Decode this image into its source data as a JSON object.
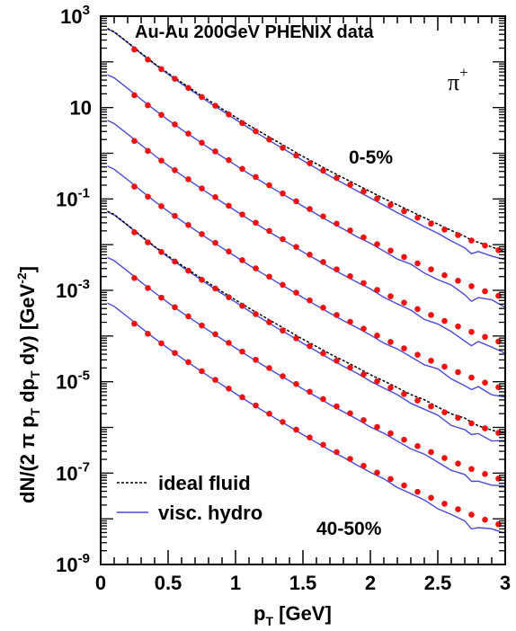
{
  "chart_data": {
    "type": "scatter",
    "title": "Au-Au 200GeV  PHENIX data",
    "particle_label": "π",
    "particle_charge": "+",
    "xlabel": "p",
    "xlabel_sub": "T",
    "xlabel_unit": " [GeV]",
    "ylabel": "dN/(2 π p_T dp_T dy) [GeV^-2]",
    "xlim": [
      0,
      3
    ],
    "ylim_log10": [
      -9,
      3
    ],
    "log_y": true,
    "x_ticks": [
      0,
      0.5,
      1,
      1.5,
      2,
      2.5,
      3
    ],
    "x_tick_labels": [
      "0",
      "0.5",
      "1",
      "1.5",
      "2",
      "2.5",
      "3"
    ],
    "y_tick_exponents": [
      3,
      1,
      -1,
      -3,
      -5,
      -7,
      -9
    ],
    "y_tick_labels": [
      "10",
      "10",
      "10",
      "10",
      "10",
      "10",
      "10"
    ],
    "y_tick_label_exponents": [
      "3",
      "",
      "-1",
      "-3",
      "-5",
      "-7",
      "-9"
    ],
    "y_tick_plain": [
      "",
      "10",
      "",
      "",
      "",
      "",
      ""
    ],
    "centrality_top": "0-5%",
    "centrality_bottom": "40-50%",
    "legend": {
      "position": "bottom-left",
      "items": [
        {
          "label": "ideal fluid",
          "style": "dotted",
          "color": "#000000"
        },
        {
          "label": "visc. hydro",
          "style": "solid",
          "color": "#4a4ad8"
        }
      ]
    },
    "colors": {
      "data": "#ee1111",
      "visc": "#4a4ad8",
      "ideal": "#000000"
    },
    "data_x": [
      0.25,
      0.35,
      0.45,
      0.55,
      0.65,
      0.75,
      0.85,
      0.95,
      1.05,
      1.15,
      1.25,
      1.35,
      1.45,
      1.55,
      1.65,
      1.75,
      1.85,
      1.95,
      2.05,
      2.15,
      2.25,
      2.35,
      2.45,
      2.55,
      2.65,
      2.75,
      2.85,
      2.95
    ],
    "series": [
      {
        "scale": 1.0,
        "ideal": true,
        "log10_y": [
          2.27,
          2.05,
          1.84,
          1.63,
          1.43,
          1.23,
          1.04,
          0.85,
          0.66,
          0.48,
          0.3,
          0.12,
          -0.05,
          -0.22,
          -0.38,
          -0.54,
          -0.69,
          -0.84,
          -0.99,
          -1.13,
          -1.27,
          -1.41,
          -1.54,
          -1.67,
          -1.79,
          -1.91,
          -2.02,
          -2.12
        ]
      },
      {
        "scale": 0.1,
        "ideal": false,
        "log10_y": [
          1.27,
          1.05,
          0.84,
          0.63,
          0.43,
          0.23,
          0.04,
          -0.15,
          -0.34,
          -0.52,
          -0.7,
          -0.88,
          -1.05,
          -1.22,
          -1.38,
          -1.54,
          -1.69,
          -1.84,
          -1.99,
          -2.13,
          -2.27,
          -2.41,
          -2.54,
          -2.67,
          -2.79,
          -2.91,
          -3.02,
          -3.12
        ]
      },
      {
        "scale": 0.01,
        "ideal": false,
        "log10_y": [
          0.27,
          0.05,
          -0.16,
          -0.37,
          -0.57,
          -0.77,
          -0.96,
          -1.15,
          -1.34,
          -1.52,
          -1.7,
          -1.88,
          -2.05,
          -2.22,
          -2.38,
          -2.54,
          -2.69,
          -2.84,
          -2.99,
          -3.13,
          -3.27,
          -3.41,
          -3.54,
          -3.67,
          -3.79,
          -3.91,
          -4.02,
          -4.12
        ]
      },
      {
        "scale": 0.001,
        "ideal": false,
        "log10_y": [
          -0.73,
          -0.95,
          -1.16,
          -1.37,
          -1.57,
          -1.77,
          -1.96,
          -2.15,
          -2.34,
          -2.52,
          -2.7,
          -2.88,
          -3.05,
          -3.22,
          -3.38,
          -3.54,
          -3.69,
          -3.84,
          -3.99,
          -4.13,
          -4.27,
          -4.41,
          -4.54,
          -4.67,
          -4.79,
          -4.91,
          -5.02,
          -5.12
        ]
      },
      {
        "scale": 0.0001,
        "ideal": true,
        "log10_y": [
          -1.73,
          -1.95,
          -2.16,
          -2.37,
          -2.57,
          -2.77,
          -2.96,
          -3.15,
          -3.34,
          -3.52,
          -3.7,
          -3.88,
          -4.05,
          -4.22,
          -4.38,
          -4.54,
          -4.69,
          -4.84,
          -4.99,
          -5.13,
          -5.27,
          -5.41,
          -5.54,
          -5.67,
          -5.79,
          -5.91,
          -6.02,
          -6.12
        ]
      },
      {
        "scale": 1e-05,
        "ideal": false,
        "log10_y": [
          -2.73,
          -2.95,
          -3.16,
          -3.37,
          -3.57,
          -3.77,
          -3.96,
          -4.15,
          -4.34,
          -4.52,
          -4.7,
          -4.88,
          -5.05,
          -5.22,
          -5.38,
          -5.54,
          -5.69,
          -5.84,
          -5.99,
          -6.13,
          -6.27,
          -6.41,
          -6.54,
          -6.67,
          -6.79,
          -6.91,
          -7.02,
          -7.12
        ]
      },
      {
        "scale": 1e-06,
        "ideal": false,
        "log10_y": [
          -3.73,
          -3.95,
          -4.16,
          -4.37,
          -4.57,
          -4.77,
          -4.96,
          -5.15,
          -5.34,
          -5.52,
          -5.7,
          -5.88,
          -6.05,
          -6.22,
          -6.38,
          -6.54,
          -6.69,
          -6.84,
          -6.99,
          -7.13,
          -7.27,
          -7.41,
          -7.54,
          -7.67,
          -7.79,
          -7.91,
          -8.02,
          -8.12
        ]
      }
    ],
    "curve_x": [
      0.05,
      0.1,
      0.2,
      0.3,
      0.4,
      0.5,
      0.6,
      0.7,
      0.8,
      0.9,
      1.0,
      1.1,
      1.2,
      1.3,
      1.4,
      1.5,
      1.6,
      1.7,
      1.8,
      1.9,
      2.0,
      2.1,
      2.2,
      2.3,
      2.4,
      2.5,
      2.6,
      2.7,
      2.75,
      2.8,
      2.9,
      3.0
    ],
    "visc_log10_y_top": [
      2.72,
      2.65,
      2.42,
      2.18,
      1.95,
      1.73,
      1.52,
      1.32,
      1.12,
      0.93,
      0.74,
      0.55,
      0.37,
      0.19,
      0.02,
      -0.16,
      -0.33,
      -0.5,
      -0.66,
      -0.82,
      -0.98,
      -1.14,
      -1.3,
      -1.45,
      -1.61,
      -1.75,
      -1.92,
      -2.07,
      -2.2,
      -2.15,
      -2.25,
      -2.33
    ],
    "ideal_log10_y_top": [
      2.73,
      2.66,
      2.43,
      2.19,
      1.96,
      1.75,
      1.55,
      1.35,
      1.16,
      0.97,
      0.79,
      0.61,
      0.44,
      0.27,
      0.1,
      -0.07,
      -0.23,
      -0.39,
      -0.54,
      -0.69,
      -0.84,
      -0.99,
      -1.13,
      -1.27,
      -1.41,
      -1.55,
      -1.69,
      -1.82,
      -1.9,
      -1.95,
      -2.05,
      -2.16
    ]
  }
}
